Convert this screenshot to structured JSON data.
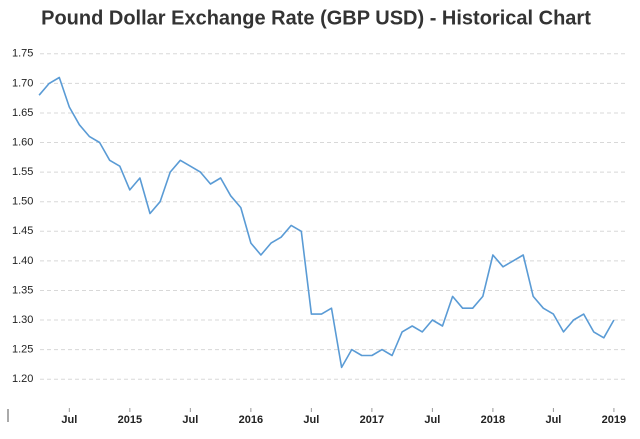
{
  "chart_data": {
    "type": "line",
    "title": "Pound Dollar Exchange Rate (GBP USD) - Historical Chart",
    "x": [
      "2014-04",
      "2014-05",
      "2014-06",
      "2014-07",
      "2014-08",
      "2014-09",
      "2014-10",
      "2014-11",
      "2014-12",
      "2015-01",
      "2015-02",
      "2015-03",
      "2015-04",
      "2015-05",
      "2015-06",
      "2015-07",
      "2015-08",
      "2015-09",
      "2015-10",
      "2015-11",
      "2015-12",
      "2016-01",
      "2016-02",
      "2016-03",
      "2016-04",
      "2016-05",
      "2016-06",
      "2016-07",
      "2016-08",
      "2016-09",
      "2016-10",
      "2016-11",
      "2016-12",
      "2017-01",
      "2017-02",
      "2017-03",
      "2017-04",
      "2017-05",
      "2017-06",
      "2017-07",
      "2017-08",
      "2017-09",
      "2017-10",
      "2017-11",
      "2017-12",
      "2018-01",
      "2018-02",
      "2018-03",
      "2018-04",
      "2018-05",
      "2018-06",
      "2018-07",
      "2018-08",
      "2018-09",
      "2018-10",
      "2018-11",
      "2018-12",
      "2019-01"
    ],
    "series": [
      {
        "color": "#5a9bd5",
        "values": [
          1.68,
          1.7,
          1.71,
          1.66,
          1.63,
          1.61,
          1.6,
          1.57,
          1.56,
          1.52,
          1.54,
          1.48,
          1.5,
          1.55,
          1.57,
          1.56,
          1.55,
          1.53,
          1.54,
          1.51,
          1.49,
          1.43,
          1.41,
          1.43,
          1.44,
          1.46,
          1.45,
          1.31,
          1.31,
          1.32,
          1.22,
          1.25,
          1.24,
          1.24,
          1.25,
          1.24,
          1.28,
          1.29,
          1.28,
          1.3,
          1.29,
          1.34,
          1.32,
          1.32,
          1.34,
          1.41,
          1.39,
          1.4,
          1.41,
          1.34,
          1.32,
          1.31,
          1.28,
          1.3,
          1.31,
          1.28,
          1.27,
          1.3
        ]
      }
    ],
    "xlim": [
      "2014-03",
      "2019-02"
    ],
    "xticks": [
      {
        "value": "2014-07",
        "label": "Jul"
      },
      {
        "value": "2015-01",
        "label": "2015"
      },
      {
        "value": "2015-07",
        "label": "Jul"
      },
      {
        "value": "2016-01",
        "label": "2016"
      },
      {
        "value": "2016-07",
        "label": "Jul"
      },
      {
        "value": "2017-01",
        "label": "2017"
      },
      {
        "value": "2017-07",
        "label": "Jul"
      },
      {
        "value": "2018-01",
        "label": "2018"
      },
      {
        "value": "2018-07",
        "label": "Jul"
      },
      {
        "value": "2019-01",
        "label": "2019"
      }
    ],
    "ylim": [
      1.175,
      1.775
    ],
    "yticks": [
      1.75,
      {
        "value": 1.7,
        "label": "1.70"
      },
      1.65,
      {
        "value": 1.6,
        "label": "1.60"
      },
      1.55,
      {
        "value": 1.5,
        "label": "1.50"
      },
      1.45,
      {
        "value": 1.4,
        "label": "1.40"
      },
      1.35,
      {
        "value": 1.3,
        "label": "1.30"
      },
      1.25,
      {
        "value": 1.2,
        "label": "1.20"
      }
    ],
    "grid": true
  }
}
